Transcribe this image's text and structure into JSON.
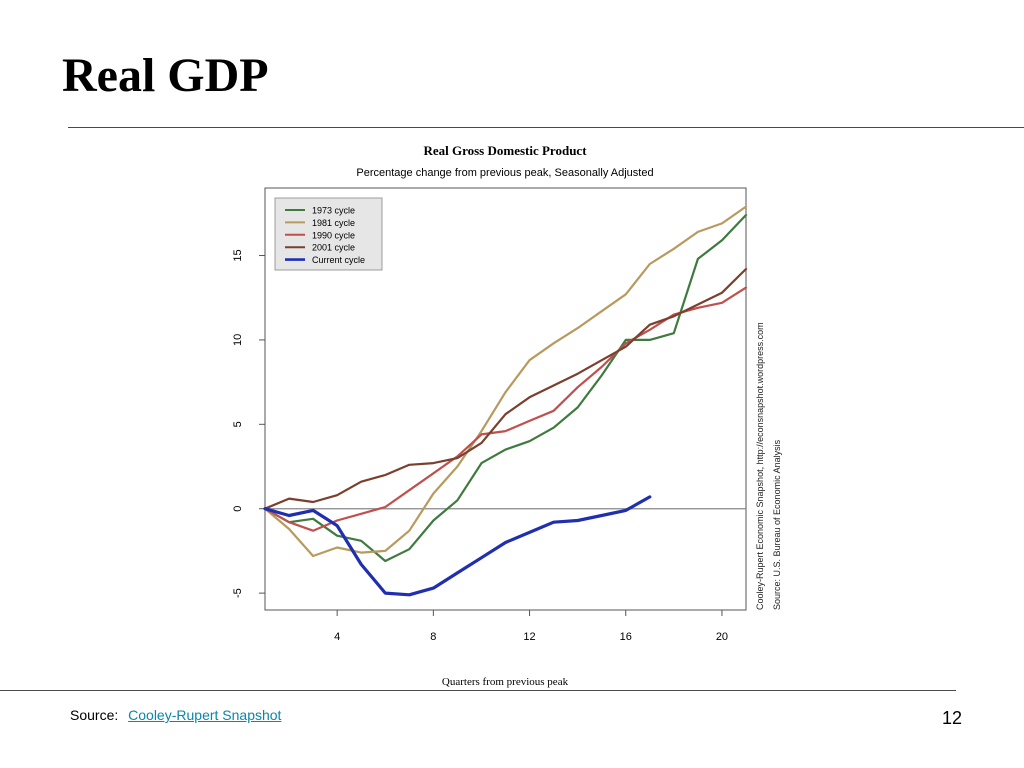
{
  "slide": {
    "title": "Real GDP",
    "footer": {
      "source_label": "Source:",
      "source_link": "Cooley-Rupert Snapshot",
      "page_number": "12"
    }
  },
  "chart_data": {
    "type": "line",
    "title": "Real Gross Domestic Product",
    "subtitle": "Percentage change from previous peak, Seasonally Adjusted",
    "xlabel": "Quarters from previous peak",
    "ylabel": "",
    "xlim": [
      1,
      21
    ],
    "ylim": [
      -6,
      19
    ],
    "xticks": [
      4,
      8,
      12,
      16,
      20
    ],
    "yticks": [
      -5,
      0,
      5,
      10,
      15
    ],
    "grid": false,
    "reference_line": 0,
    "legend_position": "top-left",
    "side_notes": [
      "Cooley-Rupert Economic Snapshot, http://econsnapshot.wordpress.com",
      "Source: U.S. Bureau of Economic Analysis"
    ],
    "series": [
      {
        "name": "1973 cycle",
        "color": "#3f7a3f",
        "x": [
          1,
          2,
          3,
          4,
          5,
          6,
          7,
          8,
          9,
          10,
          11,
          12,
          13,
          14,
          15,
          16,
          17,
          18,
          19,
          20,
          21
        ],
        "values": [
          0,
          -0.8,
          -0.6,
          -1.6,
          -1.9,
          -3.1,
          -2.4,
          -0.7,
          0.5,
          2.7,
          3.5,
          4.0,
          4.8,
          6.0,
          7.9,
          10.0,
          10.0,
          10.4,
          14.8,
          15.9,
          17.4
        ]
      },
      {
        "name": "1981 cycle",
        "color": "#b89a5e",
        "x": [
          1,
          2,
          3,
          4,
          5,
          6,
          7,
          8,
          9,
          10,
          11,
          12,
          13,
          14,
          15,
          16,
          17,
          18,
          19,
          20,
          21
        ],
        "values": [
          0,
          -1.2,
          -2.8,
          -2.3,
          -2.6,
          -2.5,
          -1.3,
          0.9,
          2.5,
          4.6,
          6.9,
          8.8,
          9.8,
          10.7,
          11.7,
          12.7,
          14.5,
          15.4,
          16.4,
          16.9,
          17.9
        ]
      },
      {
        "name": "1990 cycle",
        "color": "#c0504d",
        "x": [
          1,
          2,
          3,
          4,
          5,
          6,
          7,
          8,
          9,
          10,
          11,
          12,
          13,
          14,
          15,
          16,
          17,
          18,
          19,
          20,
          21
        ],
        "values": [
          0,
          -0.8,
          -1.3,
          -0.7,
          -0.3,
          0.1,
          1.1,
          2.1,
          3.1,
          4.4,
          4.6,
          5.2,
          5.8,
          7.2,
          8.4,
          9.8,
          10.6,
          11.5,
          11.9,
          12.2,
          13.1
        ]
      },
      {
        "name": "2001 cycle",
        "color": "#7b3f2e",
        "x": [
          1,
          2,
          3,
          4,
          5,
          6,
          7,
          8,
          9,
          10,
          11,
          12,
          13,
          14,
          15,
          16,
          17,
          18,
          19,
          20,
          21
        ],
        "values": [
          0,
          0.6,
          0.4,
          0.8,
          1.6,
          2.0,
          2.6,
          2.7,
          3.0,
          3.9,
          5.6,
          6.6,
          7.3,
          8.0,
          8.8,
          9.6,
          10.9,
          11.4,
          12.1,
          12.8,
          14.2
        ]
      },
      {
        "name": "Current cycle",
        "color": "#1f2fb0",
        "x": [
          1,
          2,
          3,
          4,
          5,
          6,
          7,
          8,
          9,
          10,
          11,
          12,
          13,
          14,
          15,
          16,
          17
        ],
        "values": [
          0,
          -0.4,
          -0.1,
          -1.0,
          -3.3,
          -5.0,
          -5.1,
          -4.7,
          -3.8,
          -2.9,
          -2.0,
          -1.4,
          -0.8,
          -0.7,
          -0.4,
          -0.1,
          0.7
        ]
      }
    ]
  }
}
